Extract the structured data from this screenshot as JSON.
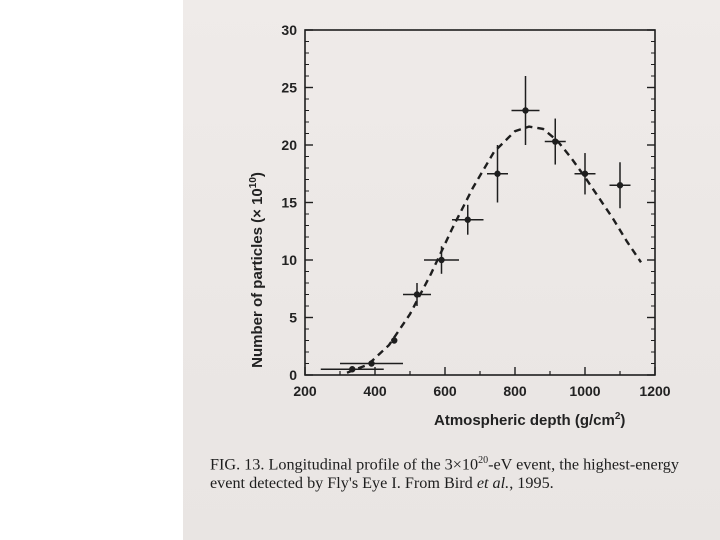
{
  "colors": {
    "ink": "#1e1e1e",
    "paper": "#ece8e6",
    "page": "#ffffff"
  },
  "chart_data": {
    "type": "scatter",
    "xlabel": "Atmospheric depth (g/cm",
    "xlabel_sup": "2",
    "xlabel_end": ")",
    "ylabel": "Number of particles (× 10",
    "ylabel_sup": "10",
    "ylabel_end": ")",
    "xlim": [
      200,
      1200
    ],
    "ylim": [
      0,
      30
    ],
    "x_ticks": [
      200,
      400,
      600,
      800,
      1000,
      1200
    ],
    "y_ticks": [
      0,
      5,
      10,
      15,
      20,
      25,
      30
    ],
    "grid": false,
    "series": [
      {
        "marker": "point-with-errorbars",
        "points": [
          {
            "x": 335,
            "y": 0.5,
            "xerr": 90,
            "yerr": 0
          },
          {
            "x": 390,
            "y": 1.0,
            "xerr": 90,
            "yerr": 0
          },
          {
            "x": 455,
            "y": 3.0,
            "xerr": 0,
            "yerr": 0
          },
          {
            "x": 520,
            "y": 7.0,
            "xerr": 40,
            "yerr": 1.0
          },
          {
            "x": 590,
            "y": 10.0,
            "xerr": 50,
            "yerr": 1.2
          },
          {
            "x": 665,
            "y": 13.5,
            "xerr": 45,
            "yerr": 1.3
          },
          {
            "x": 750,
            "y": 17.5,
            "xerr": 30,
            "yerr": 2.5
          },
          {
            "x": 830,
            "y": 23.0,
            "xerr": 40,
            "yerr": 3.0
          },
          {
            "x": 915,
            "y": 20.3,
            "xerr": 30,
            "yerr": 2.0
          },
          {
            "x": 1000,
            "y": 17.5,
            "xerr": 30,
            "yerr": 1.8
          },
          {
            "x": 1100,
            "y": 16.5,
            "xerr": 30,
            "yerr": 2.0
          }
        ]
      },
      {
        "type": "line",
        "style": "dashed",
        "x": [
          320,
          380,
          440,
          500,
          560,
          620,
          680,
          740,
          800,
          840,
          880,
          920,
          960,
          1000,
          1040,
          1080,
          1120,
          1160
        ],
        "y": [
          0.2,
          0.9,
          2.6,
          5.3,
          8.8,
          12.7,
          16.3,
          19.4,
          21.2,
          21.6,
          21.4,
          20.4,
          18.9,
          17.2,
          15.4,
          13.6,
          11.6,
          9.8
        ]
      }
    ]
  },
  "caption": {
    "part1": "FIG. 13. Longitudinal profile of the 3×10",
    "sup": "20",
    "part2": "-eV event, the highest-energy event detected by Fly's Eye I. From Bird ",
    "italic": "et al.",
    "part3": ", 1995."
  }
}
